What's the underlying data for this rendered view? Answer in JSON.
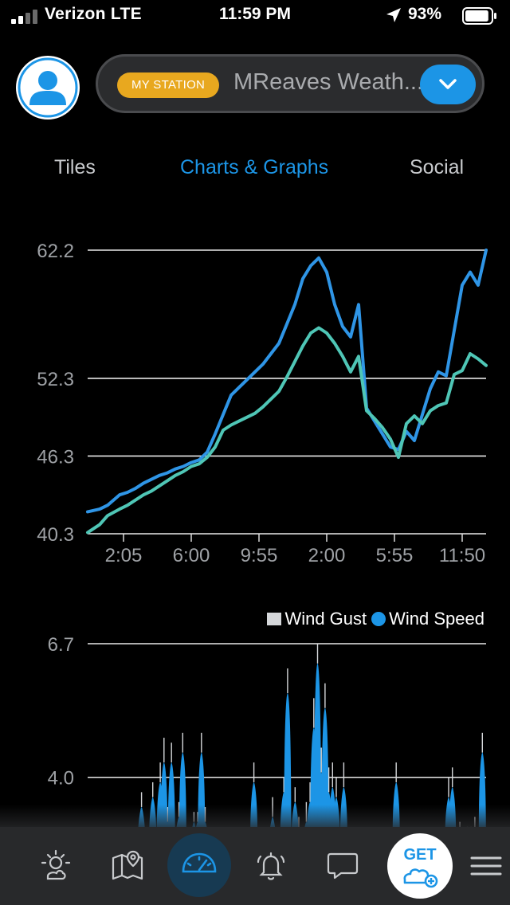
{
  "status_bar": {
    "carrier": "Verizon  LTE",
    "time": "11:59 PM",
    "battery_percent": "93%",
    "battery_level": 0.93
  },
  "header": {
    "badge_label": "MY STATION",
    "station_name": "MReaves Weath..."
  },
  "tabs": [
    {
      "label": "Tiles",
      "active": false
    },
    {
      "label": "Charts & Graphs",
      "active": true
    },
    {
      "label": "Social",
      "active": false
    }
  ],
  "colors": {
    "accent": "#1c95e6",
    "badge": "#e8a81f",
    "teal_series": "#4fc6b6",
    "gust": "#d5d7da"
  },
  "chart_data": [
    {
      "type": "line",
      "y_ticks": [
        "62.2",
        "52.3",
        "46.3",
        "40.3"
      ],
      "x_ticks": [
        "2:05",
        "6:00",
        "9:55",
        "2:00",
        "5:55",
        "11:50"
      ],
      "ylim": [
        40.3,
        62.2
      ],
      "grid": true,
      "series": [
        {
          "color": "#2f95e6",
          "x": [
            0,
            3,
            5,
            8,
            10,
            12,
            14,
            16,
            18,
            20,
            22,
            24,
            26,
            28,
            30,
            32,
            34,
            36,
            38,
            40,
            42,
            44,
            46,
            48,
            50,
            52,
            54,
            56,
            58,
            60,
            62,
            64,
            66,
            68,
            70,
            72,
            74,
            76,
            78,
            80,
            82,
            84,
            86,
            88,
            90,
            92,
            94,
            96,
            98,
            100
          ],
          "values": [
            42.0,
            42.2,
            42.5,
            43.3,
            43.5,
            43.8,
            44.2,
            44.5,
            44.8,
            45.0,
            45.3,
            45.5,
            45.8,
            46.0,
            46.6,
            48.0,
            49.5,
            51.0,
            51.6,
            52.2,
            52.8,
            53.4,
            54.2,
            55.0,
            56.5,
            58.0,
            60.0,
            61.0,
            61.6,
            60.5,
            58.0,
            56.3,
            55.5,
            58.0,
            50.0,
            49.0,
            48.0,
            47.0,
            46.8,
            48.2,
            47.5,
            49.5,
            51.5,
            52.8,
            52.5,
            56.0,
            59.5,
            60.5,
            59.5,
            62.2
          ]
        },
        {
          "color": "#4fc6b6",
          "x": [
            0,
            3,
            5,
            8,
            10,
            12,
            14,
            16,
            18,
            20,
            22,
            24,
            26,
            28,
            30,
            32,
            34,
            36,
            38,
            40,
            42,
            44,
            46,
            48,
            50,
            52,
            54,
            56,
            58,
            60,
            62,
            64,
            66,
            68,
            70,
            72,
            74,
            76,
            78,
            80,
            82,
            84,
            86,
            88,
            90,
            92,
            94,
            96,
            98,
            100
          ],
          "values": [
            40.4,
            41.0,
            41.7,
            42.2,
            42.5,
            42.9,
            43.3,
            43.6,
            44.0,
            44.4,
            44.8,
            45.1,
            45.5,
            45.7,
            46.2,
            47.0,
            48.3,
            48.7,
            49.0,
            49.3,
            49.6,
            50.1,
            50.7,
            51.3,
            52.4,
            53.6,
            54.8,
            55.8,
            56.2,
            55.8,
            55.0,
            54.0,
            52.8,
            54.0,
            49.8,
            49.2,
            48.5,
            47.6,
            46.2,
            48.8,
            49.4,
            48.8,
            49.8,
            50.2,
            50.4,
            52.6,
            52.9,
            54.2,
            53.8,
            53.3
          ]
        }
      ]
    },
    {
      "type": "bar",
      "y_ticks": [
        "6.7",
        "4.0"
      ],
      "ylim": [
        2.0,
        6.7
      ],
      "legend": [
        "Wind Gust",
        "Wind Speed"
      ],
      "legend_position": "top-right",
      "series": [
        {
          "name": "Wind Speed",
          "color": "#1c95e6",
          "x": [
            8,
            11,
            13,
            14,
            15,
            16,
            18,
            19,
            22,
            23,
            24,
            25,
            38,
            40,
            42,
            43,
            45,
            46,
            47,
            49,
            50,
            52,
            53,
            54,
            55,
            56,
            57,
            58,
            59,
            60,
            62,
            76,
            88,
            90,
            91,
            93,
            95,
            96,
            97,
            99
          ],
          "values": [
            3.4,
            3.6,
            3.9,
            4.3,
            3.1,
            4.3,
            3.2,
            4.5,
            3.1,
            3.1,
            4.5,
            3.1,
            3.9,
            2.4,
            2.6,
            3.2,
            2.5,
            3.7,
            5.7,
            3.5,
            2.9,
            3.1,
            3.5,
            5.0,
            6.3,
            4.1,
            5.4,
            3.7,
            3.8,
            3.6,
            3.8,
            3.9,
            2.5,
            3.6,
            3.8,
            2.8,
            2.7,
            2.7,
            2.9,
            4.5
          ],
          "gust_values": [
            3.7,
            3.9,
            4.3,
            4.8,
            3.4,
            4.7,
            3.5,
            4.9,
            3.3,
            3.3,
            4.9,
            3.4,
            4.3,
            2.6,
            2.9,
            3.6,
            2.8,
            4.0,
            6.2,
            3.8,
            3.2,
            3.5,
            3.9,
            5.6,
            6.7,
            4.6,
            5.9,
            4.2,
            4.3,
            4.0,
            4.3,
            4.3,
            2.8,
            4.0,
            4.2,
            3.1,
            3.0,
            3.0,
            3.2,
            4.9
          ]
        }
      ]
    }
  ]
}
